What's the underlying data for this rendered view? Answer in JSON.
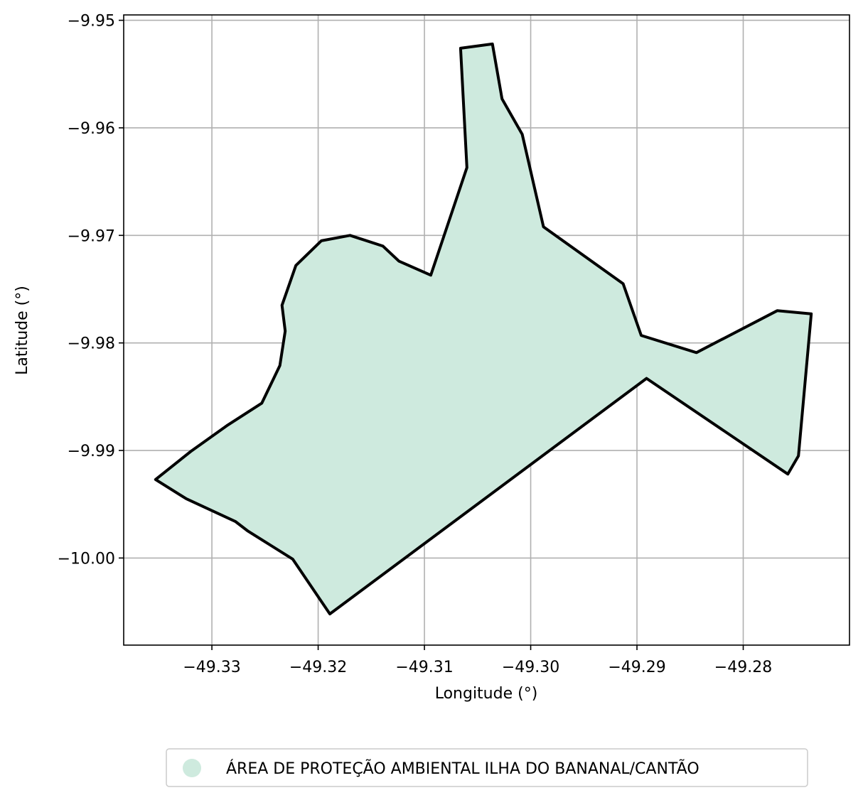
{
  "chart_data": {
    "type": "map",
    "xlabel": "Longitude (°)",
    "ylabel": "Latitude (°)",
    "xlim": [
      -49.3383,
      -49.27
    ],
    "ylim": [
      -10.0081,
      -9.9495
    ],
    "grid": true,
    "x_ticks": [
      {
        "value": -49.33,
        "label": "−49.33"
      },
      {
        "value": -49.32,
        "label": "−49.32"
      },
      {
        "value": -49.31,
        "label": "−49.31"
      },
      {
        "value": -49.3,
        "label": "−49.30"
      },
      {
        "value": -49.29,
        "label": "−49.29"
      },
      {
        "value": -49.28,
        "label": "−49.28"
      }
    ],
    "y_ticks": [
      {
        "value": -9.95,
        "label": "−9.95"
      },
      {
        "value": -9.96,
        "label": "−9.96"
      },
      {
        "value": -9.97,
        "label": "−9.97"
      },
      {
        "value": -9.98,
        "label": "−9.98"
      },
      {
        "value": -9.99,
        "label": "−9.99"
      },
      {
        "value": -10.0,
        "label": "−10.00"
      }
    ],
    "legend_position": "bottom-center",
    "regions": [
      {
        "name": "ÁREA DE PROTEÇÃO AMBIENTAL ILHA DO BANANAL/CANTÃO",
        "fill": "#ceeade",
        "stroke": "#000000",
        "boundary": [
          [
            -49.3066,
            -9.9526
          ],
          [
            -49.3036,
            -9.9522
          ],
          [
            -49.3027,
            -9.9573
          ],
          [
            -49.3008,
            -9.9606
          ],
          [
            -49.2988,
            -9.9692
          ],
          [
            -49.2913,
            -9.9745
          ],
          [
            -49.2896,
            -9.9793
          ],
          [
            -49.2844,
            -9.9809
          ],
          [
            -49.2768,
            -9.977
          ],
          [
            -49.2736,
            -9.9773
          ],
          [
            -49.2748,
            -9.9905
          ],
          [
            -49.2758,
            -9.9922
          ],
          [
            -49.2891,
            -9.9833
          ],
          [
            -49.3189,
            -10.0052
          ],
          [
            -49.3224,
            -10.0001
          ],
          [
            -49.3266,
            -9.9975
          ],
          [
            -49.3278,
            -9.9966
          ],
          [
            -49.3324,
            -9.9945
          ],
          [
            -49.3353,
            -9.9927
          ],
          [
            -49.332,
            -9.9901
          ],
          [
            -49.3286,
            -9.9877
          ],
          [
            -49.3253,
            -9.9856
          ],
          [
            -49.3236,
            -9.9821
          ],
          [
            -49.3231,
            -9.9789
          ],
          [
            -49.3234,
            -9.9765
          ],
          [
            -49.3221,
            -9.9728
          ],
          [
            -49.3197,
            -9.9705
          ],
          [
            -49.317,
            -9.97
          ],
          [
            -49.3139,
            -9.971
          ],
          [
            -49.3124,
            -9.9724
          ],
          [
            -49.3094,
            -9.9737
          ],
          [
            -49.306,
            -9.9637
          ]
        ]
      }
    ]
  }
}
